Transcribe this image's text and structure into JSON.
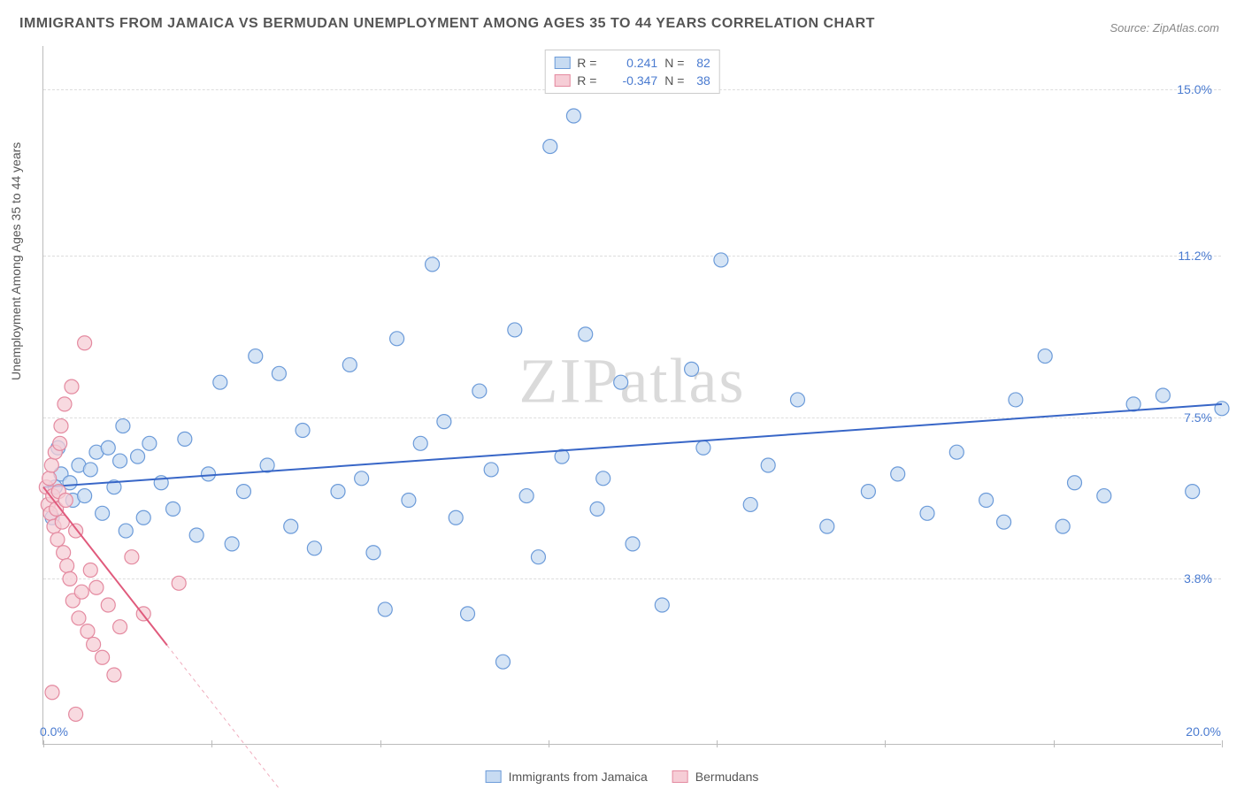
{
  "title": "IMMIGRANTS FROM JAMAICA VS BERMUDAN UNEMPLOYMENT AMONG AGES 35 TO 44 YEARS CORRELATION CHART",
  "source": "Source: ZipAtlas.com",
  "yaxis_label": "Unemployment Among Ages 35 to 44 years",
  "watermark": "ZIPatlas",
  "chart": {
    "type": "scatter",
    "xlim": [
      0,
      20
    ],
    "ylim": [
      0,
      16
    ],
    "x_ticks": [
      0,
      2.857,
      5.714,
      8.571,
      11.428,
      14.285,
      17.142,
      20
    ],
    "y_gridlines": [
      3.8,
      7.5,
      11.2,
      15.0
    ],
    "y_tick_labels": [
      "3.8%",
      "7.5%",
      "11.2%",
      "15.0%"
    ],
    "x_min_label": "0.0%",
    "x_max_label": "20.0%",
    "background_color": "#ffffff",
    "grid_color": "#dddddd",
    "marker_radius": 8,
    "marker_stroke_width": 1.2,
    "line_width": 2,
    "series": [
      {
        "name": "Immigrants from Jamaica",
        "color_fill": "#c7dbf2",
        "color_stroke": "#6c9bd9",
        "line_color": "#3866c7",
        "R": "0.241",
        "N": "82",
        "trend": {
          "x1": 0,
          "y1": 5.9,
          "x2": 20,
          "y2": 7.8,
          "solid_to_x": 20
        },
        "points": [
          [
            0.2,
            5.9
          ],
          [
            0.3,
            6.2
          ],
          [
            0.45,
            6.0
          ],
          [
            0.5,
            5.6
          ],
          [
            0.6,
            6.4
          ],
          [
            0.7,
            5.7
          ],
          [
            0.8,
            6.3
          ],
          [
            0.9,
            6.7
          ],
          [
            1.0,
            5.3
          ],
          [
            1.1,
            6.8
          ],
          [
            1.2,
            5.9
          ],
          [
            1.3,
            6.5
          ],
          [
            1.35,
            7.3
          ],
          [
            1.4,
            4.9
          ],
          [
            1.6,
            6.6
          ],
          [
            1.7,
            5.2
          ],
          [
            1.8,
            6.9
          ],
          [
            2.0,
            6.0
          ],
          [
            2.2,
            5.4
          ],
          [
            2.4,
            7.0
          ],
          [
            2.6,
            4.8
          ],
          [
            2.8,
            6.2
          ],
          [
            3.0,
            8.3
          ],
          [
            3.2,
            4.6
          ],
          [
            3.4,
            5.8
          ],
          [
            3.6,
            8.9
          ],
          [
            3.8,
            6.4
          ],
          [
            4.0,
            8.5
          ],
          [
            4.2,
            5.0
          ],
          [
            4.4,
            7.2
          ],
          [
            4.6,
            4.5
          ],
          [
            5.0,
            5.8
          ],
          [
            5.2,
            8.7
          ],
          [
            5.4,
            6.1
          ],
          [
            5.6,
            4.4
          ],
          [
            5.8,
            3.1
          ],
          [
            6.0,
            9.3
          ],
          [
            6.2,
            5.6
          ],
          [
            6.4,
            6.9
          ],
          [
            6.6,
            11.0
          ],
          [
            6.8,
            7.4
          ],
          [
            7.0,
            5.2
          ],
          [
            7.2,
            3.0
          ],
          [
            7.4,
            8.1
          ],
          [
            7.6,
            6.3
          ],
          [
            7.8,
            1.9
          ],
          [
            8.0,
            9.5
          ],
          [
            8.2,
            5.7
          ],
          [
            8.4,
            4.3
          ],
          [
            8.6,
            13.7
          ],
          [
            8.8,
            6.6
          ],
          [
            9.0,
            14.4
          ],
          [
            9.2,
            9.4
          ],
          [
            9.4,
            5.4
          ],
          [
            9.5,
            6.1
          ],
          [
            9.8,
            8.3
          ],
          [
            10.0,
            4.6
          ],
          [
            10.5,
            3.2
          ],
          [
            11.0,
            8.6
          ],
          [
            11.2,
            6.8
          ],
          [
            11.5,
            11.1
          ],
          [
            12.0,
            5.5
          ],
          [
            12.3,
            6.4
          ],
          [
            12.8,
            7.9
          ],
          [
            13.3,
            5.0
          ],
          [
            14.0,
            5.8
          ],
          [
            14.5,
            6.2
          ],
          [
            15.0,
            5.3
          ],
          [
            15.5,
            6.7
          ],
          [
            16.0,
            5.6
          ],
          [
            16.3,
            5.1
          ],
          [
            16.5,
            7.9
          ],
          [
            17.0,
            8.9
          ],
          [
            17.3,
            5.0
          ],
          [
            17.5,
            6.0
          ],
          [
            18.0,
            5.7
          ],
          [
            18.5,
            7.8
          ],
          [
            19.0,
            8.0
          ],
          [
            19.5,
            5.8
          ],
          [
            20.0,
            7.7
          ],
          [
            0.15,
            5.2
          ],
          [
            0.25,
            6.8
          ]
        ]
      },
      {
        "name": "Bermudans",
        "color_fill": "#f6cdd6",
        "color_stroke": "#e48aa0",
        "line_color": "#e05a7c",
        "R": "-0.347",
        "N": "38",
        "trend": {
          "x1": 0,
          "y1": 5.9,
          "x2": 4.0,
          "y2": -1.0,
          "solid_to_x": 2.1
        },
        "points": [
          [
            0.05,
            5.9
          ],
          [
            0.08,
            5.5
          ],
          [
            0.1,
            6.1
          ],
          [
            0.12,
            5.3
          ],
          [
            0.14,
            6.4
          ],
          [
            0.16,
            5.7
          ],
          [
            0.18,
            5.0
          ],
          [
            0.2,
            6.7
          ],
          [
            0.22,
            5.4
          ],
          [
            0.24,
            4.7
          ],
          [
            0.26,
            5.8
          ],
          [
            0.28,
            6.9
          ],
          [
            0.3,
            7.3
          ],
          [
            0.32,
            5.1
          ],
          [
            0.34,
            4.4
          ],
          [
            0.36,
            7.8
          ],
          [
            0.38,
            5.6
          ],
          [
            0.4,
            4.1
          ],
          [
            0.45,
            3.8
          ],
          [
            0.48,
            8.2
          ],
          [
            0.5,
            3.3
          ],
          [
            0.55,
            4.9
          ],
          [
            0.6,
            2.9
          ],
          [
            0.65,
            3.5
          ],
          [
            0.7,
            9.2
          ],
          [
            0.75,
            2.6
          ],
          [
            0.8,
            4.0
          ],
          [
            0.85,
            2.3
          ],
          [
            0.9,
            3.6
          ],
          [
            1.0,
            2.0
          ],
          [
            1.1,
            3.2
          ],
          [
            1.2,
            1.6
          ],
          [
            1.3,
            2.7
          ],
          [
            1.5,
            4.3
          ],
          [
            1.7,
            3.0
          ],
          [
            0.15,
            1.2
          ],
          [
            0.55,
            0.7
          ],
          [
            2.3,
            3.7
          ]
        ]
      }
    ]
  },
  "legend_bottom": [
    {
      "label": "Immigrants from Jamaica",
      "fill": "#c7dbf2",
      "stroke": "#6c9bd9"
    },
    {
      "label": "Bermudans",
      "fill": "#f6cdd6",
      "stroke": "#e48aa0"
    }
  ]
}
